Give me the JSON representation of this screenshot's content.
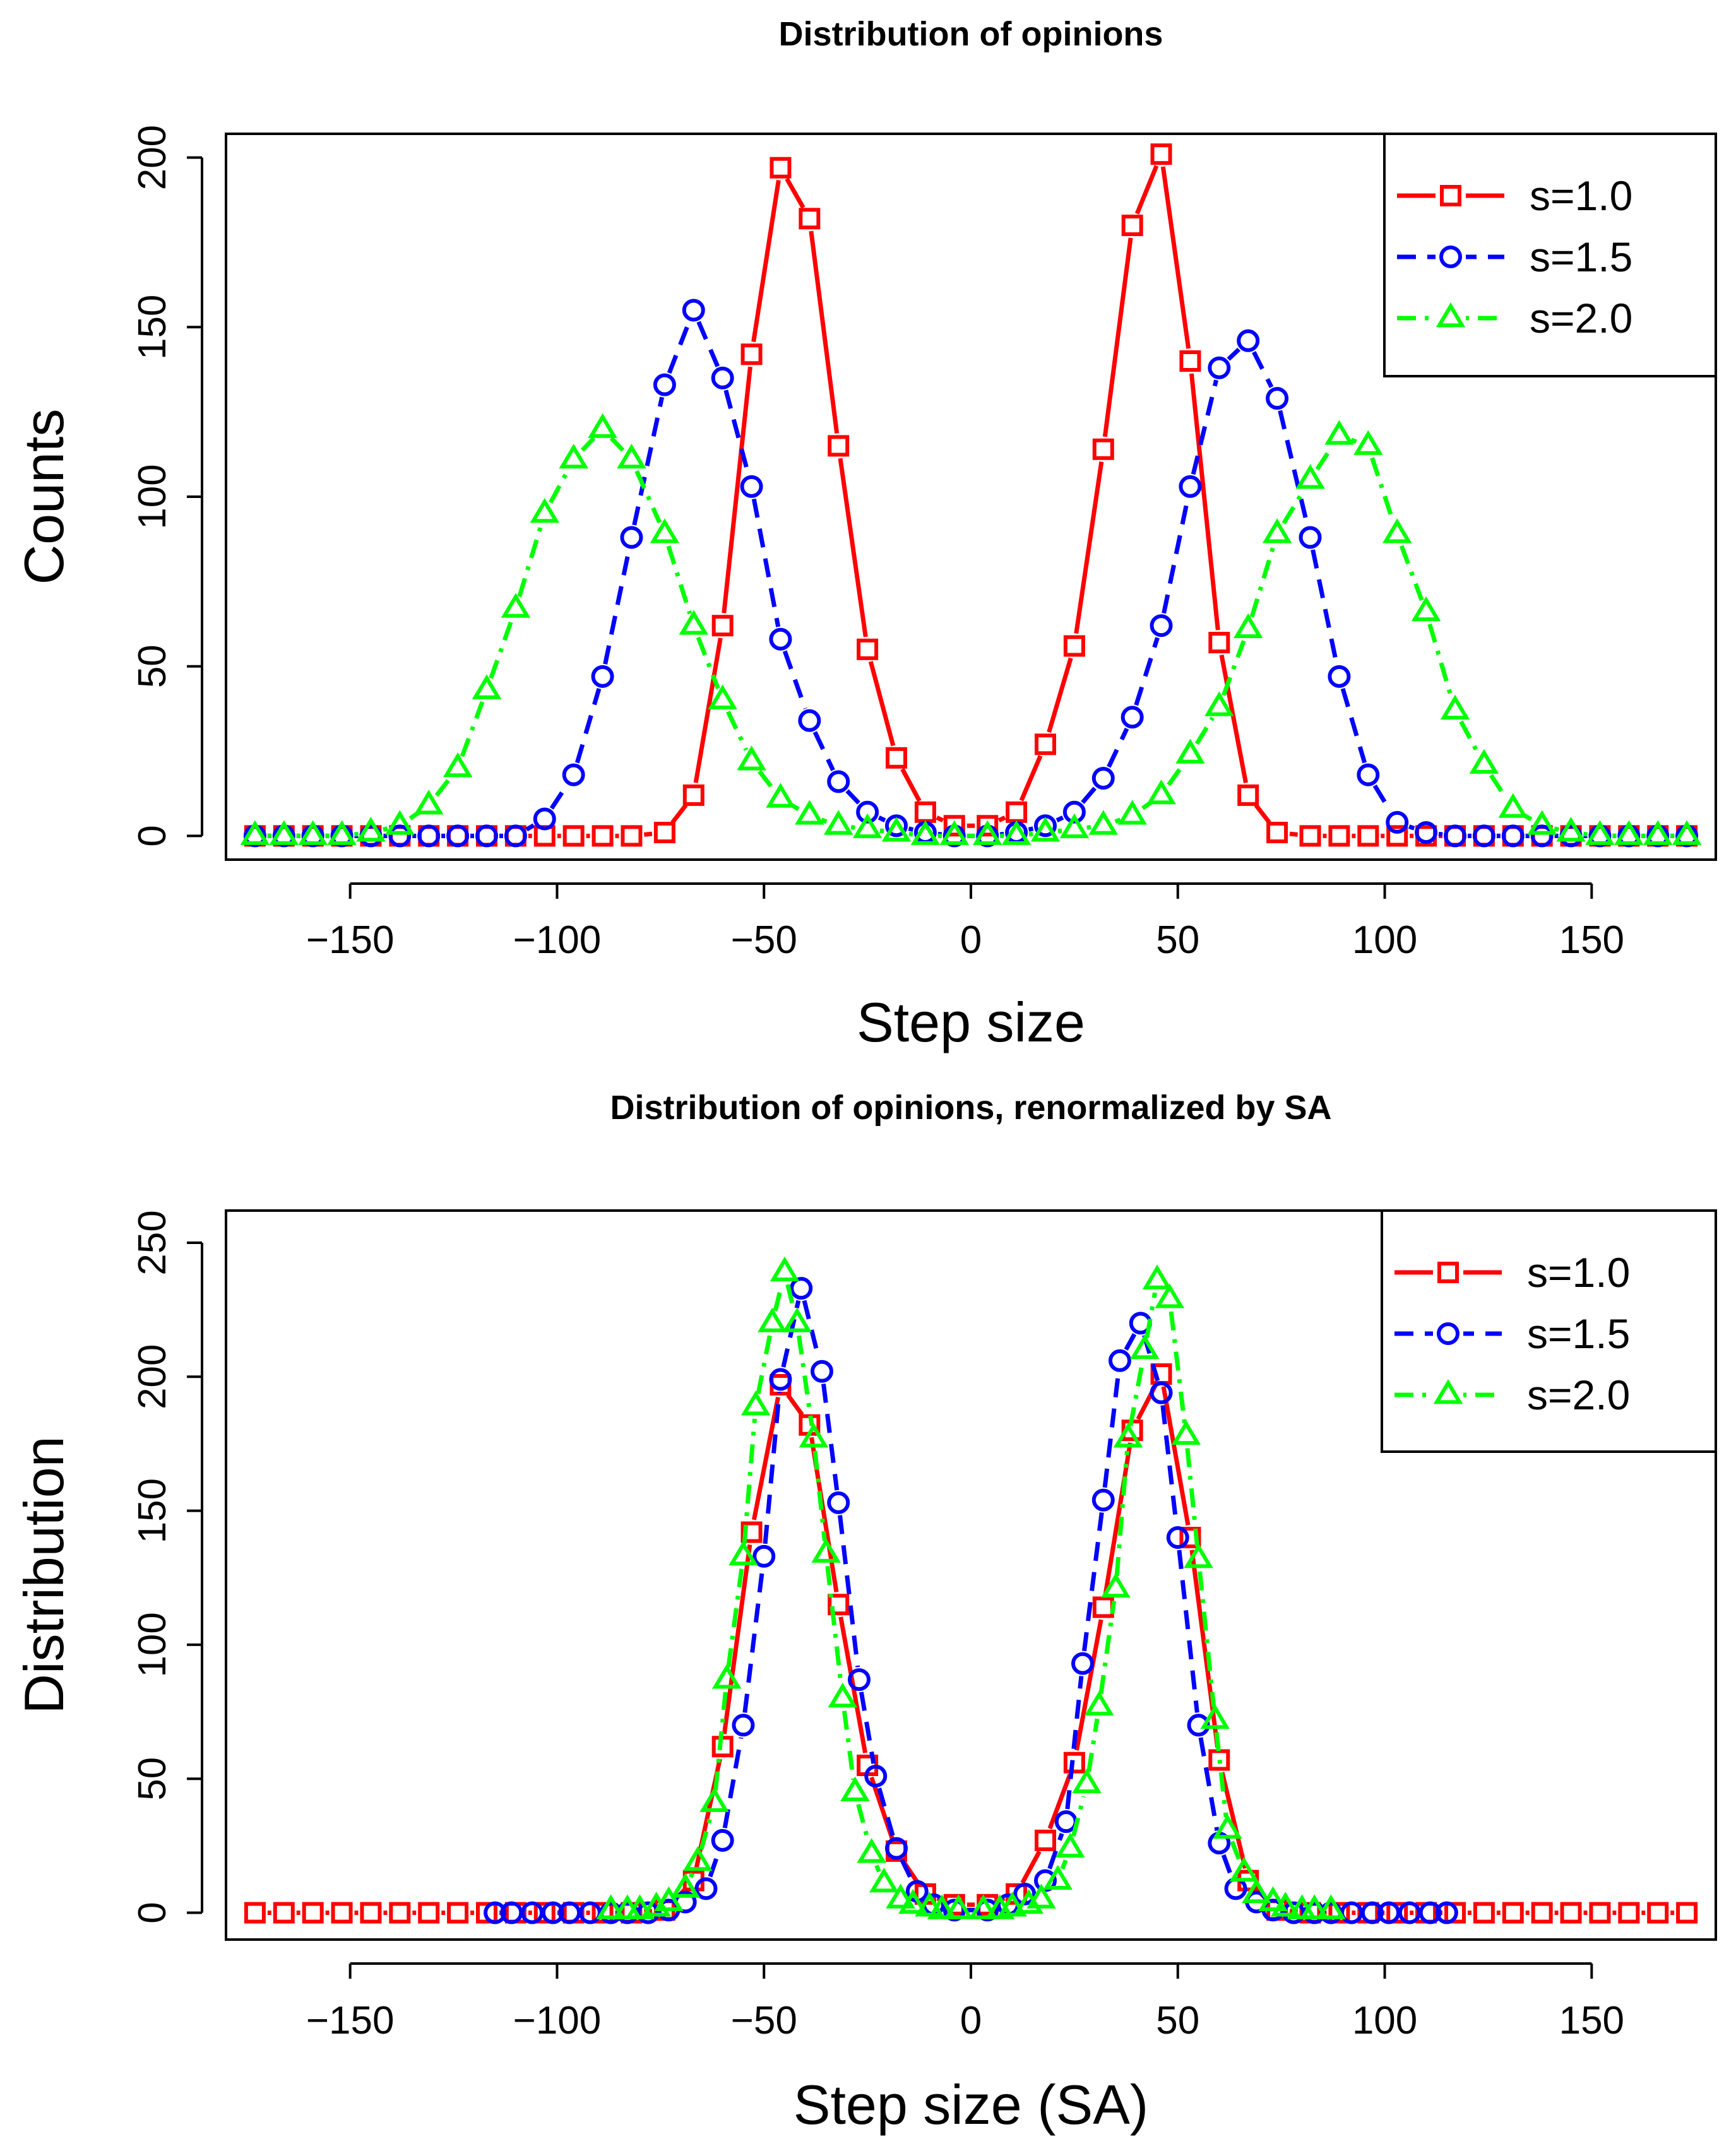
{
  "figure": {
    "background": "#ffffff"
  },
  "chart_data": [
    {
      "type": "line",
      "title": "Distribution of opinions",
      "xlabel": "Step size",
      "ylabel": "Counts",
      "xlim": [
        -180,
        180
      ],
      "ylim": [
        -7,
        207
      ],
      "xticks": [
        -150,
        -100,
        -50,
        0,
        50,
        100,
        150
      ],
      "yticks": [
        0,
        50,
        100,
        150,
        200
      ],
      "legend_position": "top-right",
      "series": [
        {
          "name": "s=1.0",
          "color": "#ff0000",
          "marker": "square",
          "line": "solid",
          "x": [
            -173,
            -166,
            -159,
            -152,
            -145,
            -138,
            -131,
            -124,
            -117,
            -110,
            -103,
            -96,
            -89,
            -82,
            -74,
            -67,
            -60,
            -53,
            -46,
            -39,
            -32,
            -25,
            -18,
            -11,
            -4,
            4,
            11,
            18,
            25,
            32,
            39,
            46,
            53,
            60,
            67,
            74,
            82,
            89,
            96,
            103,
            110,
            117,
            124,
            131,
            138,
            145,
            152,
            159,
            166,
            173
          ],
          "y": [
            0,
            0,
            0,
            0,
            0,
            0,
            0,
            0,
            0,
            0,
            0,
            0,
            0,
            0,
            1,
            12,
            62,
            142,
            197,
            182,
            115,
            55,
            23,
            7,
            3,
            3,
            7,
            27,
            56,
            114,
            180,
            201,
            140,
            57,
            12,
            1,
            0,
            0,
            0,
            0,
            0,
            0,
            0,
            0,
            0,
            0,
            0,
            0,
            0,
            0
          ]
        },
        {
          "name": "s=1.5",
          "color": "#0000ff",
          "marker": "circle",
          "line": "dashed",
          "x": [
            -173,
            -166,
            -159,
            -152,
            -145,
            -138,
            -131,
            -124,
            -117,
            -110,
            -103,
            -96,
            -89,
            -82,
            -74,
            -67,
            -60,
            -53,
            -46,
            -39,
            -32,
            -25,
            -18,
            -11,
            -4,
            4,
            11,
            18,
            25,
            32,
            39,
            46,
            53,
            60,
            67,
            74,
            82,
            89,
            96,
            103,
            110,
            117,
            124,
            131,
            138,
            145,
            152,
            159,
            166,
            173
          ],
          "y": [
            0,
            0,
            0,
            0,
            0,
            0,
            0,
            0,
            0,
            0,
            5,
            18,
            47,
            88,
            133,
            155,
            135,
            103,
            58,
            34,
            16,
            7,
            3,
            1,
            0,
            0,
            1,
            3,
            7,
            17,
            35,
            62,
            103,
            138,
            146,
            129,
            88,
            47,
            18,
            4,
            1,
            0,
            0,
            0,
            0,
            0,
            0,
            0,
            0,
            0
          ]
        },
        {
          "name": "s=2.0",
          "color": "#00ff00",
          "marker": "triangle",
          "line": "dashdot",
          "x": [
            -173,
            -166,
            -159,
            -152,
            -145,
            -138,
            -131,
            -124,
            -117,
            -110,
            -103,
            -96,
            -89,
            -82,
            -74,
            -67,
            -60,
            -53,
            -46,
            -39,
            -32,
            -25,
            -18,
            -11,
            -4,
            4,
            11,
            18,
            25,
            32,
            39,
            46,
            53,
            60,
            67,
            74,
            82,
            89,
            96,
            103,
            110,
            117,
            124,
            131,
            138,
            145,
            152,
            159,
            166,
            173
          ],
          "y": [
            0,
            0,
            0,
            0,
            1,
            3,
            9,
            20,
            43,
            67,
            95,
            111,
            120,
            111,
            89,
            62,
            40,
            22,
            11,
            6,
            3,
            2,
            1,
            0,
            0,
            0,
            0,
            1,
            2,
            3,
            6,
            12,
            24,
            38,
            61,
            89,
            105,
            118,
            115,
            89,
            66,
            37,
            21,
            8,
            3,
            1,
            0,
            0,
            0,
            0
          ]
        }
      ]
    },
    {
      "type": "line",
      "title": "Distribution of opinions, renormalized by SA",
      "xlabel": "Step size (SA)",
      "ylabel": "Distribution",
      "xlim": [
        -180,
        180
      ],
      "ylim": [
        -10,
        262
      ],
      "xticks": [
        -150,
        -100,
        -50,
        0,
        50,
        100,
        150
      ],
      "yticks": [
        0,
        50,
        100,
        150,
        200,
        250
      ],
      "legend_position": "top-right",
      "series": [
        {
          "name": "s=1.0",
          "color": "#ff0000",
          "marker": "square",
          "line": "solid",
          "x": [
            -173,
            -166,
            -159,
            -152,
            -145,
            -138,
            -131,
            -124,
            -117,
            -110,
            -103,
            -96,
            -89,
            -82,
            -74,
            -67,
            -60,
            -53,
            -46,
            -39,
            -32,
            -25,
            -18,
            -11,
            -4,
            4,
            11,
            18,
            25,
            32,
            39,
            46,
            53,
            60,
            67,
            74,
            82,
            89,
            96,
            103,
            110,
            117,
            124,
            131,
            138,
            145,
            152,
            159,
            166,
            173
          ],
          "y": [
            0,
            0,
            0,
            0,
            0,
            0,
            0,
            0,
            0,
            0,
            0,
            0,
            0,
            0,
            1,
            12,
            62,
            142,
            197,
            182,
            115,
            55,
            23,
            7,
            3,
            3,
            7,
            27,
            56,
            114,
            180,
            201,
            140,
            57,
            12,
            1,
            0,
            0,
            0,
            0,
            0,
            0,
            0,
            0,
            0,
            0,
            0,
            0,
            0,
            0
          ]
        },
        {
          "name": "s=1.5",
          "color": "#0000ff",
          "marker": "circle",
          "line": "dashed",
          "x": [
            -115,
            -111,
            -106,
            -101,
            -97,
            -92,
            -87,
            -83,
            -78,
            -73,
            -69,
            -64,
            -60,
            -55,
            -50,
            -46,
            -41,
            -36,
            -32,
            -27,
            -23,
            -18,
            -13,
            -9,
            -4,
            4,
            9,
            13,
            18,
            23,
            27,
            32,
            36,
            41,
            46,
            50,
            55,
            60,
            64,
            69,
            73,
            78,
            83,
            87,
            92,
            97,
            101,
            106,
            111,
            115
          ],
          "y": [
            0,
            0,
            0,
            0,
            0,
            0,
            0,
            0,
            0,
            1,
            4,
            9,
            27,
            70,
            133,
            199,
            233,
            202,
            153,
            87,
            51,
            24,
            8,
            3,
            1,
            1,
            3,
            7,
            12,
            34,
            93,
            154,
            206,
            220,
            194,
            140,
            70,
            26,
            9,
            4,
            1,
            0,
            0,
            0,
            0,
            0,
            0,
            0,
            0,
            0
          ]
        },
        {
          "name": "s=2.0",
          "color": "#00ff00",
          "marker": "triangle",
          "line": "dashdot",
          "x": [
            -87,
            -83,
            -80,
            -76,
            -73,
            -69,
            -66,
            -62,
            -59,
            -55,
            -52,
            -48,
            -45,
            -42,
            -38,
            -35,
            -31,
            -28,
            -24,
            -21,
            -17,
            -14,
            -10,
            -7,
            -3,
            3,
            7,
            10,
            14,
            17,
            21,
            24,
            28,
            31,
            35,
            38,
            42,
            45,
            48,
            52,
            55,
            59,
            62,
            66,
            69,
            73,
            76,
            80,
            83,
            87
          ],
          "y": [
            1,
            1,
            1,
            2,
            4,
            9,
            19,
            41,
            87,
            133,
            189,
            220,
            239,
            220,
            177,
            134,
            80,
            45,
            22,
            11,
            5,
            3,
            2,
            1,
            1,
            1,
            1,
            2,
            3,
            5,
            12,
            24,
            48,
            77,
            121,
            177,
            210,
            236,
            229,
            178,
            132,
            72,
            31,
            15,
            7,
            4,
            2,
            1,
            1,
            1
          ]
        }
      ]
    }
  ]
}
